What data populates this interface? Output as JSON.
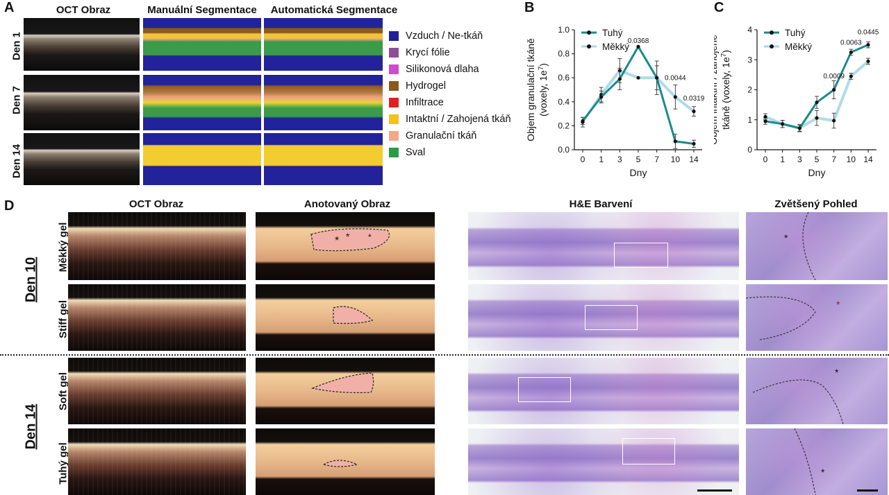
{
  "panel_labels": {
    "a": "A",
    "b": "B",
    "c": "C",
    "d": "D"
  },
  "panelA": {
    "col_headers": [
      "OCT Obraz",
      "Manuální Segmentace",
      "Automatická Segmentace"
    ],
    "row_labels": [
      "Den 1",
      "Den 7",
      "Den 14"
    ],
    "legend": [
      {
        "label": "Vzduch / Ne-tkáň",
        "color": "#20209a"
      },
      {
        "label": "Krycí fólie",
        "color": "#8e4d96"
      },
      {
        "label": "Silikonová dlaha",
        "color": "#d04ad0"
      },
      {
        "label": "Hydrogel",
        "color": "#8a5a1c"
      },
      {
        "label": "Infiltrace",
        "color": "#e02020"
      },
      {
        "label": "Intaktní / Zahojená tkáň",
        "color": "#f4c21a"
      },
      {
        "label": "Granulační tkáň",
        "color": "#f4a888"
      },
      {
        "label": "Sval",
        "color": "#2a9a44"
      }
    ]
  },
  "chart_data": [
    {
      "id": "B",
      "type": "line",
      "ylabel_line1": "Objem granulační tkáně",
      "ylabel_line2": "(voxely, 1e",
      "ylabel_exp": "7",
      "ylabel_close": ")",
      "xlabel": "Dny",
      "categories": [
        "0",
        "1",
        "3",
        "5",
        "7",
        "10",
        "14"
      ],
      "ylim": [
        0,
        1.0
      ],
      "yticks": [
        "0.0",
        "0.2",
        "0.4",
        "0.6",
        "0.8",
        "1.0"
      ],
      "series": [
        {
          "name": "Tuhý",
          "color": "#1a8a8c",
          "values": [
            0.24,
            0.44,
            0.59,
            0.86,
            0.6,
            0.07,
            0.05
          ],
          "err": [
            0.03,
            0.05,
            0.09,
            0.0,
            0.1,
            0.06,
            0.03
          ]
        },
        {
          "name": "Měkký",
          "color": "#a6d7e6",
          "values": [
            0.23,
            0.46,
            0.66,
            0.6,
            0.6,
            0.44,
            0.32
          ],
          "err": [
            0.04,
            0.06,
            0.1,
            0.0,
            0.14,
            0.1,
            0.04
          ]
        }
      ],
      "annotations": [
        {
          "text": "0.0368",
          "x": "5",
          "y": 0.89
        },
        {
          "text": "0.0044",
          "x": "10",
          "y": 0.58
        },
        {
          "text": "0.0319",
          "x": "14",
          "y": 0.41
        }
      ]
    },
    {
      "id": "C",
      "type": "line",
      "ylabel_line1": "Objem intaktní / zahojené",
      "ylabel_line2": "tkáně (voxely, 1e",
      "ylabel_exp": "7",
      "ylabel_close": ")",
      "xlabel": "Dny",
      "categories": [
        "0",
        "1",
        "3",
        "5",
        "7",
        "10",
        "14"
      ],
      "ylim": [
        0,
        4
      ],
      "yticks": [
        "0",
        "1",
        "2",
        "3",
        "4"
      ],
      "series": [
        {
          "name": "Tuhý",
          "color": "#1a8a8c",
          "values": [
            0.95,
            0.86,
            0.72,
            1.58,
            2.0,
            3.25,
            3.5
          ],
          "err": [
            0.1,
            0.12,
            0.1,
            0.2,
            0.3,
            0.1,
            0.1
          ]
        },
        {
          "name": "Měkký",
          "color": "#a6d7e6",
          "values": [
            1.1,
            0.86,
            0.72,
            1.06,
            0.97,
            2.45,
            2.95
          ],
          "err": [
            0.1,
            0.12,
            0.12,
            0.25,
            0.25,
            0.1,
            0.1
          ]
        }
      ],
      "annotations": [
        {
          "text": "0.0009",
          "x": "7",
          "y": 2.38
        },
        {
          "text": "0.0063",
          "x": "10",
          "y": 3.5
        },
        {
          "text": "0.0445",
          "x": "14",
          "y": 3.85
        }
      ]
    }
  ],
  "panelD": {
    "col_headers": [
      "OCT Obraz",
      "Anotovaný Obraz",
      "H&E Barvení",
      "Zvětšený Pohled"
    ],
    "group_labels": [
      "Den 10",
      "Den 14"
    ],
    "row_labels": [
      "Měkký gel",
      "Stiff gel",
      "Soft gel",
      "Tuhý gel"
    ]
  }
}
